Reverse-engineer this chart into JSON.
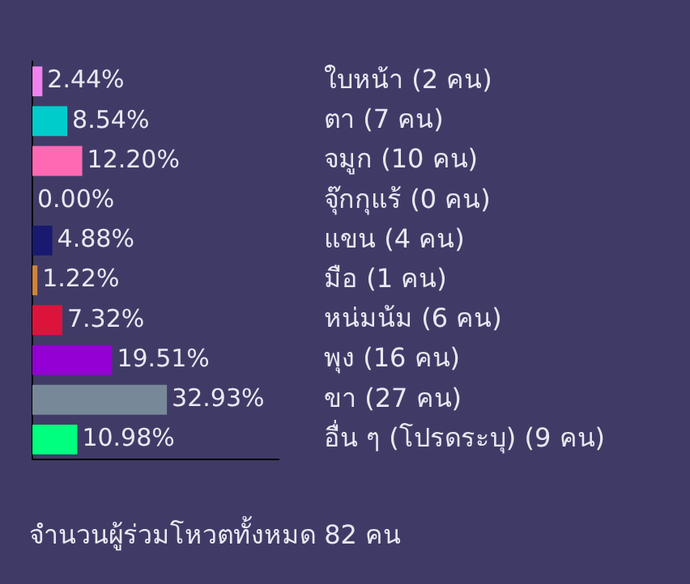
{
  "chart_data": {
    "type": "bar",
    "orientation": "horizontal",
    "categories": [
      "ใบหน้า (2 คน)",
      "ตา (7 คน)",
      "จมูก (10 คน)",
      "จุ๊กกุแร้ (0 คน)",
      "แขน (4 คน)",
      "มือ (1 คน)",
      "หน่มน้ม (6 คน)",
      "พุง (16 คน)",
      "ขา (27 คน)",
      "อื่น ๆ (โปรดระบุ) (9 คน)"
    ],
    "values": [
      2.44,
      8.54,
      12.2,
      0,
      4.88,
      1.22,
      7.32,
      19.51,
      32.93,
      10.98
    ],
    "value_labels": [
      "2.44%",
      "8.54%",
      "12.20%",
      "0.00%",
      "4.88%",
      "1.22%",
      "7.32%",
      "19.51%",
      "32.93%",
      "10.98%"
    ],
    "colors": [
      "#ee82ee",
      "#00cccc",
      "#ff69b4",
      "#add8e6",
      "#191970",
      "#cd853f",
      "#dc143c",
      "#9400d3",
      "#778899",
      "#00ff7f"
    ],
    "tick_labels": "y",
    "grid": false,
    "legend": false,
    "annotations": [
      "จำนวนผู้ร่วมโหวตทั้งหมด 82 คน"
    ]
  }
}
